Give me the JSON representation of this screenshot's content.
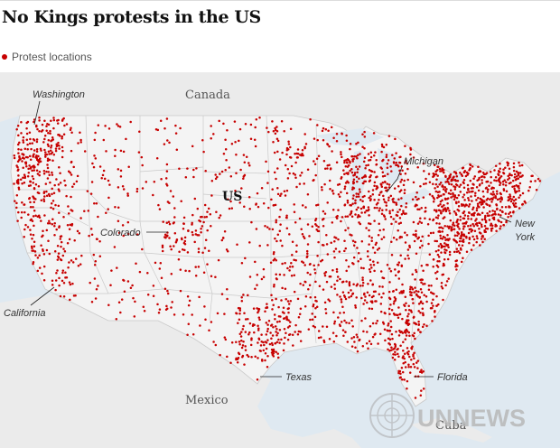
{
  "header": {
    "title": "No Kings protests in the US"
  },
  "legend": {
    "label": "Protest locations",
    "color": "#c70000"
  },
  "map": {
    "countries": {
      "canada": "Canada",
      "us": "US",
      "mexico": "Mexico",
      "cuba": "Cuba"
    },
    "states": {
      "washington": "Washington",
      "colorado": "Colorado",
      "california": "California",
      "texas": "Texas",
      "florida": "Florida",
      "michigan": "Michigan",
      "new_york_line1": "New",
      "new_york_line2": "York"
    },
    "colors": {
      "water": "#dfe9f1",
      "land_us": "#f4f4f4",
      "land_other": "#ebebeb",
      "border": "#c9c9c9",
      "dot": "#c70000"
    }
  },
  "watermark": {
    "text": "UNNEWS",
    "icon": "un-emblem-icon"
  }
}
